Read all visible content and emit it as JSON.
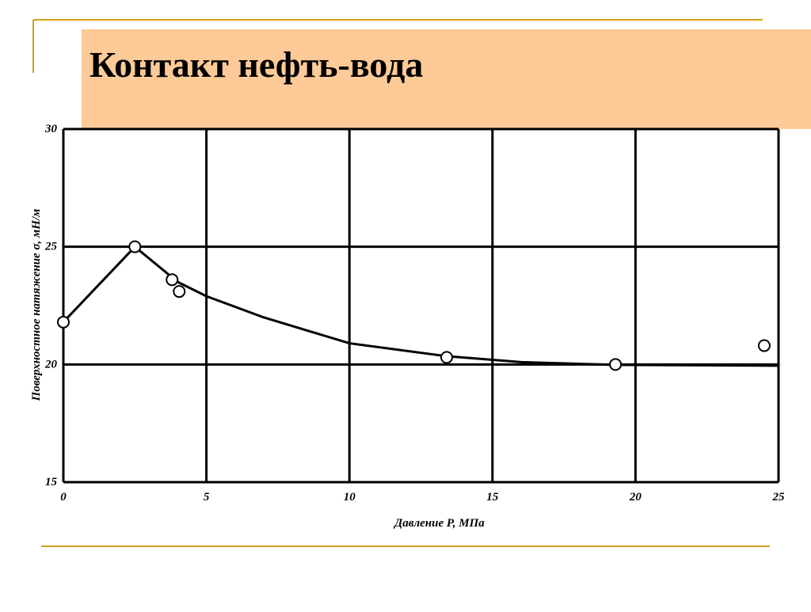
{
  "title": "Контакт нефть-вода",
  "chart_data": {
    "type": "scatter",
    "x_label": "Давление Р, МПа",
    "y_label": "Поверхностное натяжение σ, мН/м",
    "xlim": [
      0,
      25
    ],
    "xticks": [
      0,
      5,
      10,
      15,
      20,
      25
    ],
    "ylim": [
      15,
      30
    ],
    "yticks": [
      15,
      20,
      25,
      30
    ],
    "grid": true,
    "series": [
      {
        "marker": "circle",
        "color": "#000000",
        "x": [
          0,
          2.5,
          3.8,
          4.05,
          13.4,
          19.3,
          24.5
        ],
        "values": [
          21.8,
          25,
          23.6,
          23.1,
          20.3,
          20.0,
          20.8
        ]
      },
      {
        "marker": "line",
        "color": "#000000",
        "x": [
          0,
          2.5,
          4,
          5,
          7,
          10,
          13.4,
          16,
          19.3,
          25
        ],
        "values": [
          21.8,
          25,
          23.5,
          22.9,
          22.0,
          20.9,
          20.35,
          20.1,
          19.98,
          19.95
        ]
      }
    ]
  }
}
